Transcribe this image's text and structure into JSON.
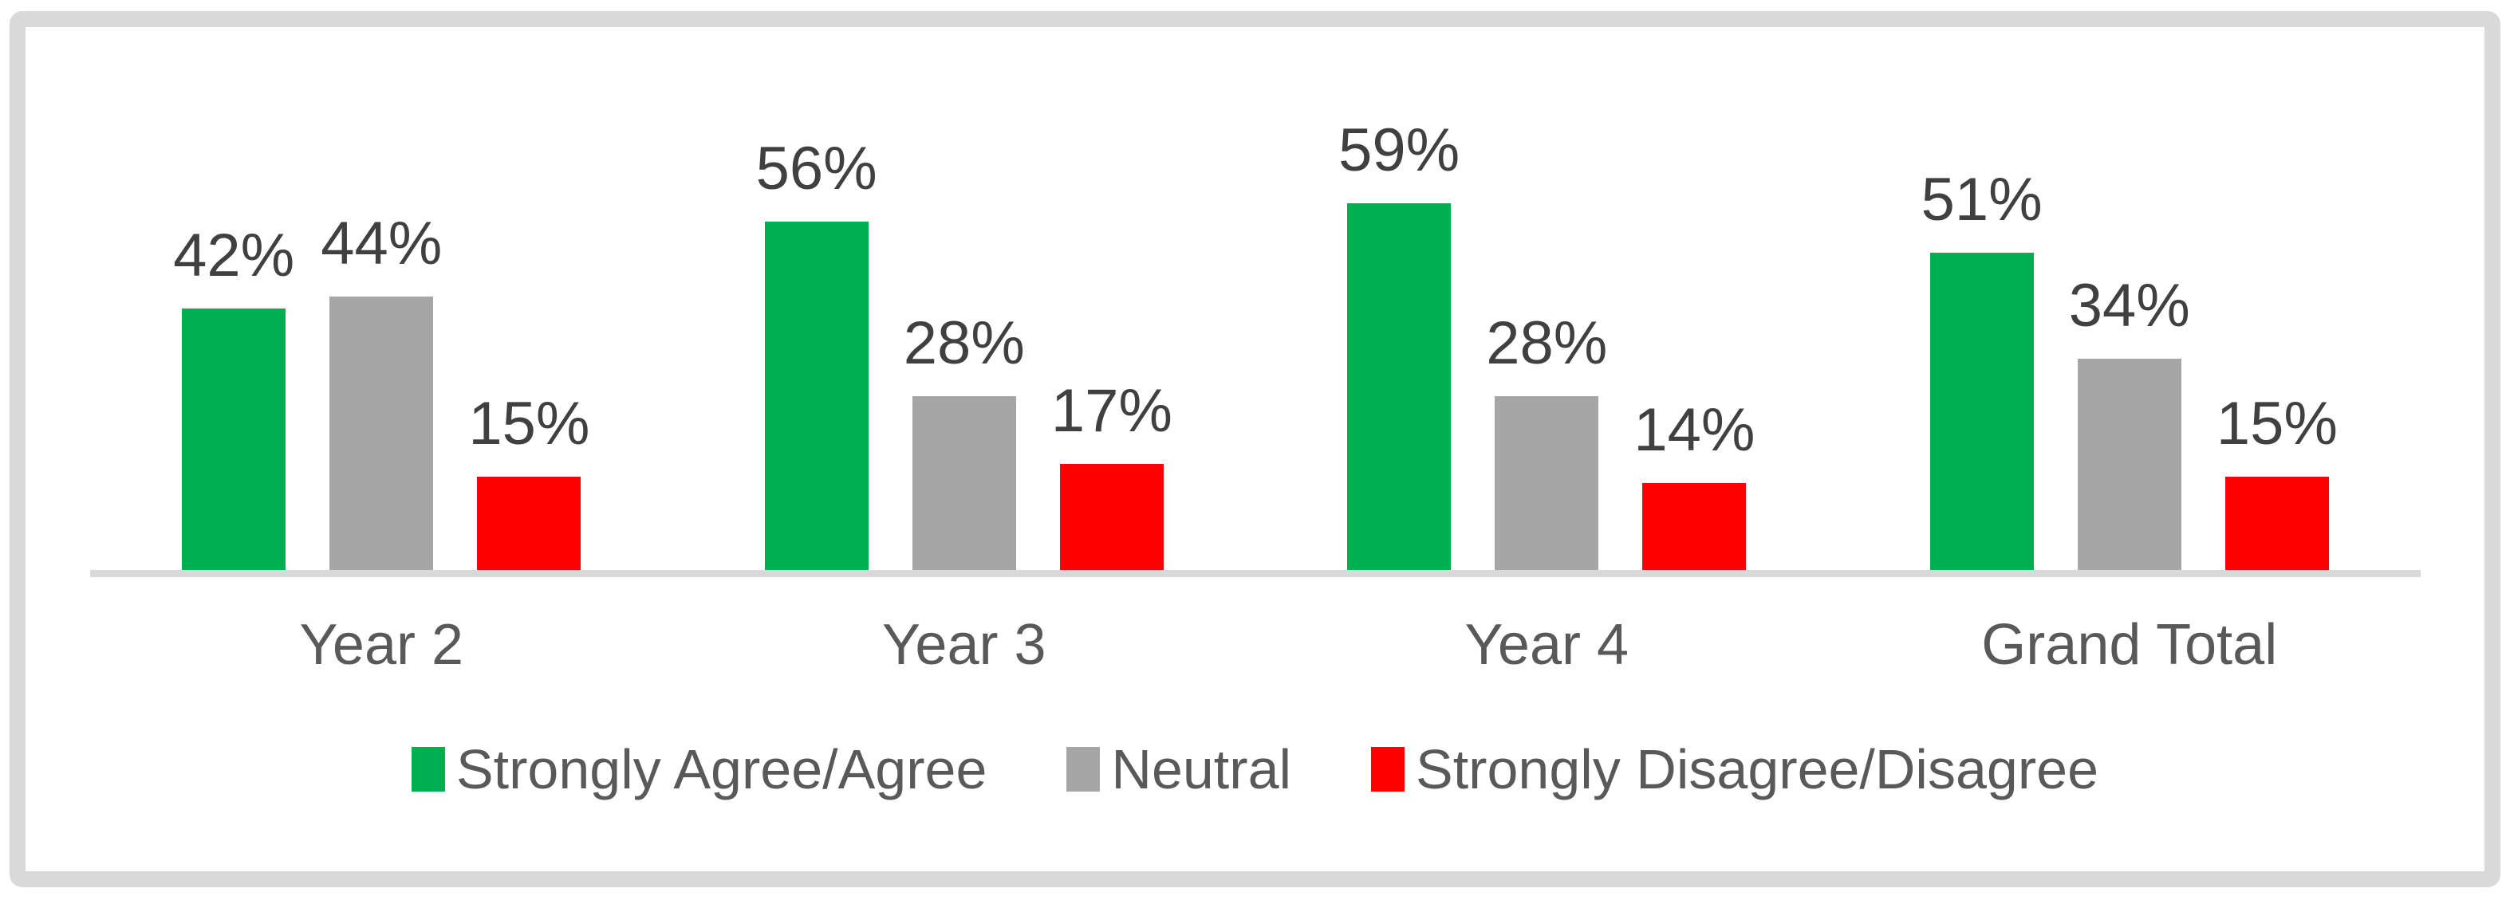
{
  "chart_data": {
    "type": "bar",
    "categories": [
      "Year 2",
      "Year 3",
      "Year 4",
      "Grand Total"
    ],
    "series": [
      {
        "name": "Strongly Agree/Agree",
        "color": "#00B050",
        "values": [
          42,
          56,
          59,
          51
        ]
      },
      {
        "name": "Neutral",
        "color": "#A6A6A6",
        "values": [
          44,
          28,
          28,
          34
        ]
      },
      {
        "name": "Strongly Disagree/Disagree",
        "color": "#FF0000",
        "values": [
          15,
          17,
          14,
          15
        ]
      }
    ],
    "value_suffix": "%",
    "data_labels_shown": true,
    "title": "",
    "xlabel": "",
    "ylabel": "",
    "ylim": [
      0,
      62
    ],
    "grid": "off",
    "legend_position": "bottom-center",
    "colors": {
      "axis_line": "#D9D9D9",
      "frame_border": "#D9D9D9",
      "data_label_text": "#404040",
      "category_label_text": "#595959",
      "legend_text": "#595959",
      "background": "#FFFFFF"
    }
  }
}
